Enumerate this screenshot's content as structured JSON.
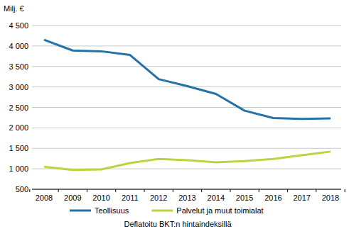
{
  "chart_data": {
    "type": "line",
    "y_label": "Milj. €",
    "annotation": "Deflatoitu BKT:n hintaindeksillä",
    "categories": [
      "2008",
      "2009",
      "2010",
      "2011",
      "2012",
      "2013",
      "2014",
      "2015",
      "2016",
      "2017",
      "2018"
    ],
    "series": [
      {
        "name": "Teollisuus",
        "color": "#2372a8",
        "values": [
          4150,
          3890,
          3870,
          3780,
          3190,
          3020,
          2830,
          2420,
          2240,
          2220,
          2230
        ]
      },
      {
        "name": "Palvelut ja muut toimialat",
        "color": "#b7d63f",
        "values": [
          1050,
          970,
          985,
          1140,
          1240,
          1210,
          1160,
          1190,
          1240,
          1330,
          1420
        ]
      }
    ],
    "ylim": [
      500,
      4500
    ],
    "yticks": [
      {
        "value": 4500,
        "label": "4 500"
      },
      {
        "value": 4000,
        "label": "4 000"
      },
      {
        "value": 3500,
        "label": "3 500"
      },
      {
        "value": 3000,
        "label": "3 000"
      },
      {
        "value": 2500,
        "label": "2 500"
      },
      {
        "value": 2000,
        "label": "2 000"
      },
      {
        "value": 1500,
        "label": "1 500"
      },
      {
        "value": 1000,
        "label": "1 000"
      },
      500
    ],
    "grid": true,
    "legend": "bottom"
  }
}
